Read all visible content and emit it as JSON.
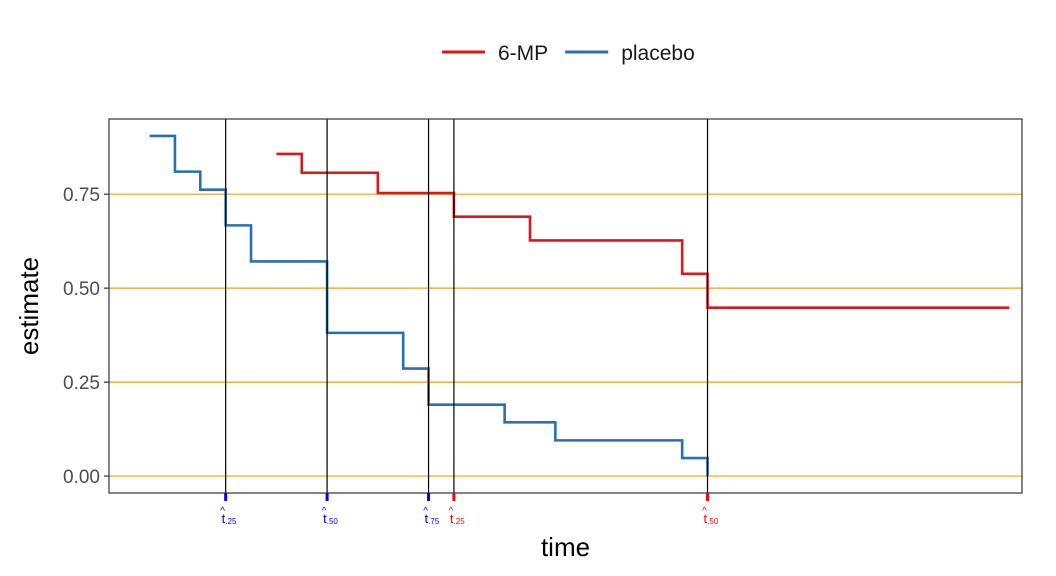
{
  "chart_data": {
    "type": "line",
    "step": true,
    "xlabel": "time",
    "ylabel": "estimate",
    "xlim": [
      0,
      36
    ],
    "ylim": [
      -0.045,
      0.95
    ],
    "yticks": [
      "0.00",
      "0.25",
      "0.50",
      "0.75"
    ],
    "ytick_values": [
      0,
      0.25,
      0.5,
      0.75
    ],
    "grid": false,
    "legend_position": "top",
    "reference_lines": {
      "horizontal": [
        0,
        0.25,
        0.5,
        0.75
      ],
      "horizontal_color": "#f39c12",
      "vertical": [
        4.6,
        8.6,
        12.6,
        13.6,
        23.6
      ],
      "vertical_color": "#000000"
    },
    "series": [
      {
        "name": "6-MP",
        "color": "#d7191c",
        "x": [
          6.6,
          7.6,
          10.6,
          13.6,
          16.6,
          22.6,
          23.6,
          35.5
        ],
        "y": [
          0.857,
          0.807,
          0.753,
          0.69,
          0.627,
          0.538,
          0.448,
          0.448
        ]
      },
      {
        "name": "placebo",
        "color": "#2c6fb0",
        "x": [
          1.6,
          2.6,
          3.6,
          4.6,
          5.6,
          8.6,
          11.6,
          12.6,
          15.6,
          17.6,
          22.6,
          23.6
        ],
        "y": [
          0.905,
          0.81,
          0.762,
          0.667,
          0.571,
          0.381,
          0.286,
          0.19,
          0.143,
          0.095,
          0.048,
          0.0
        ]
      }
    ],
    "quantile_markers": [
      {
        "x": 4.6,
        "hat": "^",
        "sym": "t",
        "sub": ".25",
        "color": "#0000ff"
      },
      {
        "x": 8.6,
        "hat": "^",
        "sym": "t",
        "sub": ".50",
        "color": "#0000ff"
      },
      {
        "x": 12.6,
        "hat": "^",
        "sym": "t",
        "sub": ".75",
        "color": "#0000ff"
      },
      {
        "x": 13.6,
        "hat": "^",
        "sym": "t",
        "sub": ".25",
        "color": "#ff0000"
      },
      {
        "x": 23.6,
        "hat": "^",
        "sym": "t",
        "sub": ".50",
        "color": "#ff0000"
      }
    ]
  }
}
